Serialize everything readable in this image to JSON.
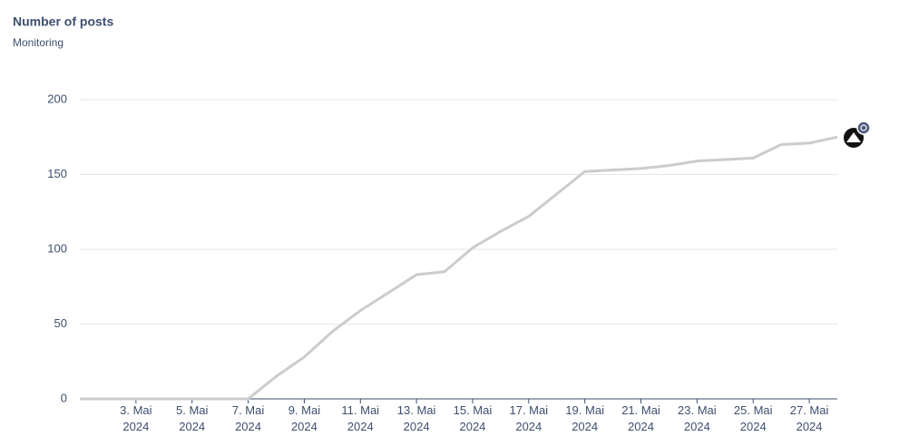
{
  "chart_data": {
    "type": "line",
    "title": "Number of posts",
    "subtitle": "Monitoring",
    "x": [
      "2024-05-01",
      "2024-05-02",
      "2024-05-03",
      "2024-05-04",
      "2024-05-05",
      "2024-05-06",
      "2024-05-07",
      "2024-05-08",
      "2024-05-09",
      "2024-05-10",
      "2024-05-11",
      "2024-05-12",
      "2024-05-13",
      "2024-05-14",
      "2024-05-15",
      "2024-05-16",
      "2024-05-17",
      "2024-05-18",
      "2024-05-19",
      "2024-05-20",
      "2024-05-21",
      "2024-05-22",
      "2024-05-23",
      "2024-05-24",
      "2024-05-25",
      "2024-05-26",
      "2024-05-27",
      "2024-05-28"
    ],
    "series": [
      {
        "color": "#cccccc",
        "values": [
          0,
          0,
          0,
          0,
          0,
          0,
          0,
          15,
          28,
          45,
          59,
          71,
          83,
          85,
          101,
          112,
          122,
          137,
          152,
          153,
          154,
          156,
          159,
          160,
          161,
          170,
          171,
          175
        ]
      }
    ],
    "xlim": [
      "2024-05-01",
      "2024-05-28"
    ],
    "xticks": [
      {
        "value": "2024-05-03",
        "label": "3. Mai 2024"
      },
      {
        "value": "2024-05-05",
        "label": "5. Mai 2024"
      },
      {
        "value": "2024-05-07",
        "label": "7. Mai 2024"
      },
      {
        "value": "2024-05-09",
        "label": "9. Mai 2024"
      },
      {
        "value": "2024-05-11",
        "label": "11. Mai 2024"
      },
      {
        "value": "2024-05-13",
        "label": "13. Mai 2024"
      },
      {
        "value": "2024-05-15",
        "label": "15. Mai 2024"
      },
      {
        "value": "2024-05-17",
        "label": "17. Mai 2024"
      },
      {
        "value": "2024-05-19",
        "label": "19. Mai 2024"
      },
      {
        "value": "2024-05-21",
        "label": "21. Mai 2024"
      },
      {
        "value": "2024-05-23",
        "label": "23. Mai 2024"
      },
      {
        "value": "2024-05-25",
        "label": "25. Mai 2024"
      },
      {
        "value": "2024-05-27",
        "label": "27. Mai 2024"
      }
    ],
    "ylim": [
      0,
      200
    ],
    "yticks": [
      0,
      50,
      100,
      150,
      200
    ],
    "grid": true
  }
}
